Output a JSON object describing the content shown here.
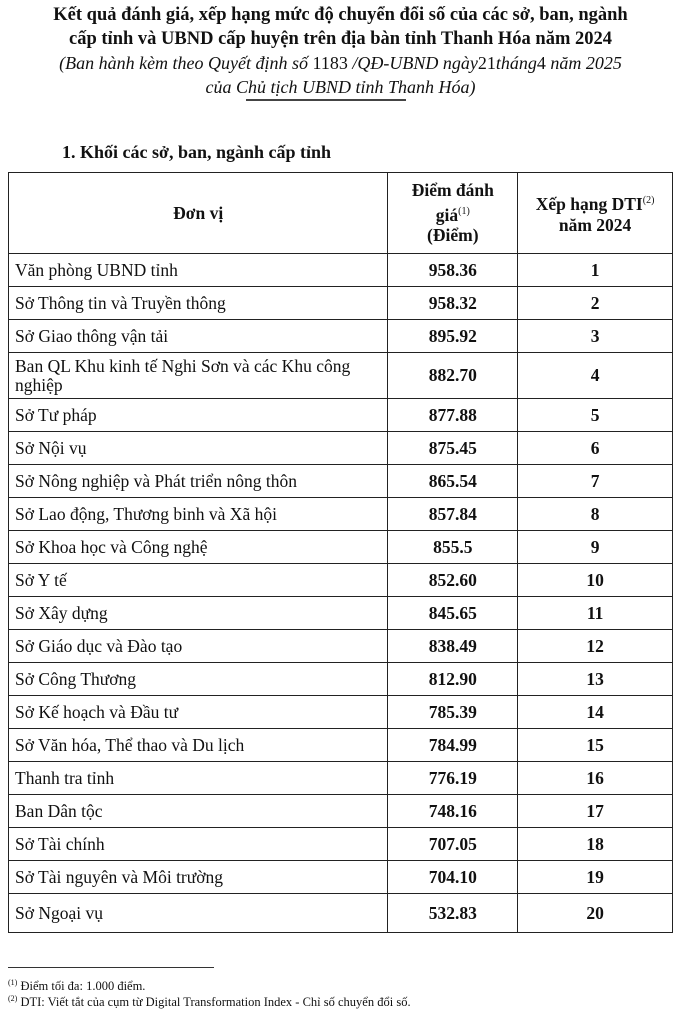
{
  "title_lines": [
    "Kết quả đánh giá, xếp hạng mức độ chuyển đổi số của các sở, ban, ngành",
    "cấp tỉnh và UBND cấp huyện trên địa bàn tỉnh Thanh Hóa năm 2024"
  ],
  "subtitle": {
    "prefix": "(Ban hành kèm theo Quyết định số",
    "decision_number": "1183",
    "decision_suffix": "/QĐ-UBND  ngày",
    "day": "21",
    "month_label": "tháng",
    "month": "4",
    "year_label": "năm 2025",
    "line2": "của Chủ tịch UBND tỉnh Thanh Hóa)"
  },
  "section_title": "1. Khối các sở, ban, ngành cấp tỉnh",
  "table": {
    "headers": {
      "unit": "Đơn vị",
      "score": "Điểm đánh giá",
      "score_note": "(1)",
      "score_unit": "(Điểm)",
      "rank": "Xếp hạng DTI",
      "rank_note": "(2)",
      "rank_year": "năm 2024"
    },
    "rows": [
      {
        "unit": "Văn phòng UBND tỉnh",
        "score": "958.36",
        "rank": "1"
      },
      {
        "unit": "Sở Thông tin và Truyền thông",
        "score": "958.32",
        "rank": "2"
      },
      {
        "unit": "Sở Giao thông vận tải",
        "score": "895.92",
        "rank": "3"
      },
      {
        "unit": "Ban QL Khu kinh tế Nghi Sơn và các Khu công nghiệp",
        "score": "882.70",
        "rank": "4"
      },
      {
        "unit": "Sở Tư pháp",
        "score": "877.88",
        "rank": "5"
      },
      {
        "unit": "Sở Nội vụ",
        "score": "875.45",
        "rank": "6"
      },
      {
        "unit": "Sở Nông nghiệp và Phát triển nông thôn",
        "score": "865.54",
        "rank": "7"
      },
      {
        "unit": "Sở Lao động, Thương binh và Xã hội",
        "score": "857.84",
        "rank": "8"
      },
      {
        "unit": "Sở Khoa học và Công nghệ",
        "score": "855.5",
        "rank": "9"
      },
      {
        "unit": "Sở Y tế",
        "score": "852.60",
        "rank": "10"
      },
      {
        "unit": "Sở Xây dựng",
        "score": "845.65",
        "rank": "11"
      },
      {
        "unit": "Sở Giáo dục và Đào tạo",
        "score": "838.49",
        "rank": "12"
      },
      {
        "unit": "Sở Công Thương",
        "score": "812.90",
        "rank": "13"
      },
      {
        "unit": "Sở Kế hoạch và Đầu tư",
        "score": "785.39",
        "rank": "14"
      },
      {
        "unit": "Sở Văn hóa, Thể thao và Du lịch",
        "score": "784.99",
        "rank": "15"
      },
      {
        "unit": "Thanh tra tỉnh",
        "score": "776.19",
        "rank": "16"
      },
      {
        "unit": "Ban Dân tộc",
        "score": "748.16",
        "rank": "17"
      },
      {
        "unit": "Sở Tài chính",
        "score": "707.05",
        "rank": "18"
      },
      {
        "unit": "Sở Tài nguyên và Môi trường",
        "score": "704.10",
        "rank": "19"
      },
      {
        "unit": "Sở Ngoại vụ",
        "score": "532.83",
        "rank": "20"
      }
    ]
  },
  "footnotes": [
    {
      "mark": "(1)",
      "text": "Điểm tối đa: 1.000 điểm."
    },
    {
      "mark": "(2)",
      "text": "DTI:  Viết tắt của cụm từ Digital Transformation Index - Chỉ số chuyển đổi số."
    }
  ]
}
